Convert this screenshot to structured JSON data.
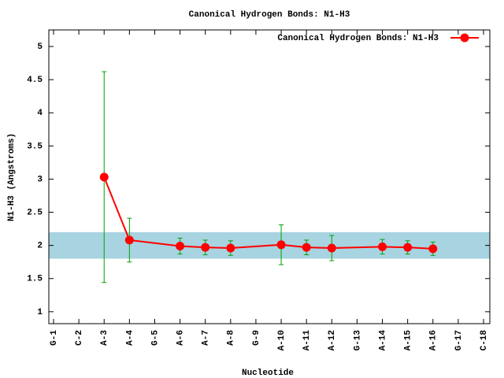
{
  "chart_data": {
    "type": "line",
    "title": "Canonical Hydrogen Bonds: N1-H3",
    "x_label": "Nucleotide",
    "y_label": "N1-H3 (Angstroms)",
    "categories": [
      "G-1",
      "C-2",
      "A-3",
      "A-4",
      "G-5",
      "A-6",
      "A-7",
      "A-8",
      "G-9",
      "A-10",
      "A-11",
      "A-12",
      "G-13",
      "A-14",
      "A-15",
      "A-16",
      "G-17",
      "C-18"
    ],
    "series": [
      {
        "name": "Canonical Hydrogen Bonds: N1-H3",
        "color": "#ff0000",
        "error_color": "#00a000",
        "values": [
          null,
          null,
          3.03,
          2.08,
          null,
          1.99,
          1.97,
          1.96,
          null,
          2.01,
          1.97,
          1.96,
          null,
          1.98,
          1.97,
          1.95,
          null,
          null
        ],
        "errors": [
          null,
          null,
          1.59,
          0.33,
          null,
          0.12,
          0.11,
          0.11,
          null,
          0.3,
          0.11,
          0.19,
          null,
          0.11,
          0.1,
          0.1,
          null,
          null
        ]
      }
    ],
    "band": [
      1.8,
      2.2
    ],
    "band_color": "#a8d3e0",
    "ylim": [
      0.82,
      5.25
    ],
    "yticks": [
      1,
      1.5,
      2,
      2.5,
      3,
      3.5,
      4,
      4.5,
      5
    ],
    "legend": "top-right"
  }
}
